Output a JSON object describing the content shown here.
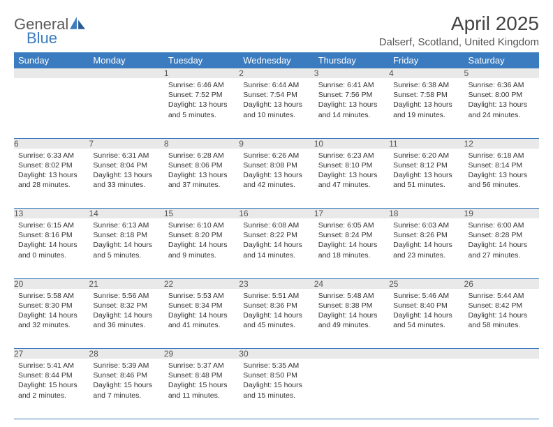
{
  "logo": {
    "word1": "General",
    "word2": "Blue"
  },
  "title": "April 2025",
  "location": "Dalserf, Scotland, United Kingdom",
  "header_bg": "#3b7bbf",
  "daynum_bg": "#e9e9e9",
  "border_color": "#3b7bbf",
  "day_headers": [
    "Sunday",
    "Monday",
    "Tuesday",
    "Wednesday",
    "Thursday",
    "Friday",
    "Saturday"
  ],
  "weeks": [
    [
      null,
      null,
      {
        "n": "1",
        "sr": "6:46 AM",
        "ss": "7:52 PM",
        "dl": "13 hours and 5 minutes."
      },
      {
        "n": "2",
        "sr": "6:44 AM",
        "ss": "7:54 PM",
        "dl": "13 hours and 10 minutes."
      },
      {
        "n": "3",
        "sr": "6:41 AM",
        "ss": "7:56 PM",
        "dl": "13 hours and 14 minutes."
      },
      {
        "n": "4",
        "sr": "6:38 AM",
        "ss": "7:58 PM",
        "dl": "13 hours and 19 minutes."
      },
      {
        "n": "5",
        "sr": "6:36 AM",
        "ss": "8:00 PM",
        "dl": "13 hours and 24 minutes."
      }
    ],
    [
      {
        "n": "6",
        "sr": "6:33 AM",
        "ss": "8:02 PM",
        "dl": "13 hours and 28 minutes."
      },
      {
        "n": "7",
        "sr": "6:31 AM",
        "ss": "8:04 PM",
        "dl": "13 hours and 33 minutes."
      },
      {
        "n": "8",
        "sr": "6:28 AM",
        "ss": "8:06 PM",
        "dl": "13 hours and 37 minutes."
      },
      {
        "n": "9",
        "sr": "6:26 AM",
        "ss": "8:08 PM",
        "dl": "13 hours and 42 minutes."
      },
      {
        "n": "10",
        "sr": "6:23 AM",
        "ss": "8:10 PM",
        "dl": "13 hours and 47 minutes."
      },
      {
        "n": "11",
        "sr": "6:20 AM",
        "ss": "8:12 PM",
        "dl": "13 hours and 51 minutes."
      },
      {
        "n": "12",
        "sr": "6:18 AM",
        "ss": "8:14 PM",
        "dl": "13 hours and 56 minutes."
      }
    ],
    [
      {
        "n": "13",
        "sr": "6:15 AM",
        "ss": "8:16 PM",
        "dl": "14 hours and 0 minutes."
      },
      {
        "n": "14",
        "sr": "6:13 AM",
        "ss": "8:18 PM",
        "dl": "14 hours and 5 minutes."
      },
      {
        "n": "15",
        "sr": "6:10 AM",
        "ss": "8:20 PM",
        "dl": "14 hours and 9 minutes."
      },
      {
        "n": "16",
        "sr": "6:08 AM",
        "ss": "8:22 PM",
        "dl": "14 hours and 14 minutes."
      },
      {
        "n": "17",
        "sr": "6:05 AM",
        "ss": "8:24 PM",
        "dl": "14 hours and 18 minutes."
      },
      {
        "n": "18",
        "sr": "6:03 AM",
        "ss": "8:26 PM",
        "dl": "14 hours and 23 minutes."
      },
      {
        "n": "19",
        "sr": "6:00 AM",
        "ss": "8:28 PM",
        "dl": "14 hours and 27 minutes."
      }
    ],
    [
      {
        "n": "20",
        "sr": "5:58 AM",
        "ss": "8:30 PM",
        "dl": "14 hours and 32 minutes."
      },
      {
        "n": "21",
        "sr": "5:56 AM",
        "ss": "8:32 PM",
        "dl": "14 hours and 36 minutes."
      },
      {
        "n": "22",
        "sr": "5:53 AM",
        "ss": "8:34 PM",
        "dl": "14 hours and 41 minutes."
      },
      {
        "n": "23",
        "sr": "5:51 AM",
        "ss": "8:36 PM",
        "dl": "14 hours and 45 minutes."
      },
      {
        "n": "24",
        "sr": "5:48 AM",
        "ss": "8:38 PM",
        "dl": "14 hours and 49 minutes."
      },
      {
        "n": "25",
        "sr": "5:46 AM",
        "ss": "8:40 PM",
        "dl": "14 hours and 54 minutes."
      },
      {
        "n": "26",
        "sr": "5:44 AM",
        "ss": "8:42 PM",
        "dl": "14 hours and 58 minutes."
      }
    ],
    [
      {
        "n": "27",
        "sr": "5:41 AM",
        "ss": "8:44 PM",
        "dl": "15 hours and 2 minutes."
      },
      {
        "n": "28",
        "sr": "5:39 AM",
        "ss": "8:46 PM",
        "dl": "15 hours and 7 minutes."
      },
      {
        "n": "29",
        "sr": "5:37 AM",
        "ss": "8:48 PM",
        "dl": "15 hours and 11 minutes."
      },
      {
        "n": "30",
        "sr": "5:35 AM",
        "ss": "8:50 PM",
        "dl": "15 hours and 15 minutes."
      },
      null,
      null,
      null
    ]
  ],
  "labels": {
    "sunrise": "Sunrise:",
    "sunset": "Sunset:",
    "daylight": "Daylight:"
  }
}
